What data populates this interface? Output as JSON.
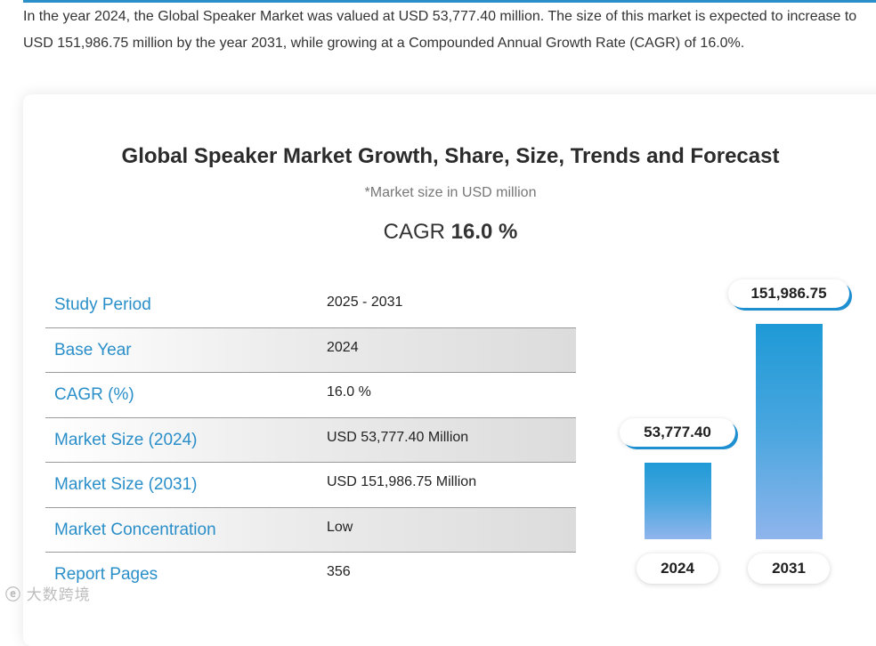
{
  "intro_text": "In the year 2024, the Global Speaker Market was valued at USD 53,777.40 million. The size of this market is expected to increase to USD 151,986.75 million by the year 2031, while growing at a Compounded Annual Growth Rate (CAGR) of 16.0%.",
  "card": {
    "title": "Global Speaker Market Growth, Share, Size, Trends and Forecast",
    "subtitle": "*Market size in USD million",
    "cagr_label": "CAGR",
    "cagr_value": "16.0 %"
  },
  "table": {
    "rows": [
      {
        "label": "Study Period",
        "value": "2025 - 2031"
      },
      {
        "label": "Base Year",
        "value": "2024"
      },
      {
        "label": "CAGR (%)",
        "value": "16.0 %"
      },
      {
        "label": "Market Size (2024)",
        "value": "USD 53,777.40 Million"
      },
      {
        "label": "Market Size (2031)",
        "value": "USD 151,986.75 Million"
      },
      {
        "label": "Market Concentration",
        "value": "Low"
      },
      {
        "label": "Report Pages",
        "value": "356"
      }
    ]
  },
  "chart_data": {
    "type": "bar",
    "title": "Global Speaker Market Growth, Share, Size, Trends and Forecast",
    "categories": [
      "2024",
      "2031"
    ],
    "values": [
      53777.4,
      151986.75
    ],
    "value_labels": [
      "53,777.40",
      "151,986.75"
    ],
    "ylabel": "Market size in USD million",
    "colors": {
      "bar_top": "#1e9ad6",
      "bar_bottom": "#8fb5ec",
      "accent": "#2a8fc9"
    }
  },
  "watermark": {
    "logo": "ⓔ",
    "text": "大数跨境"
  }
}
